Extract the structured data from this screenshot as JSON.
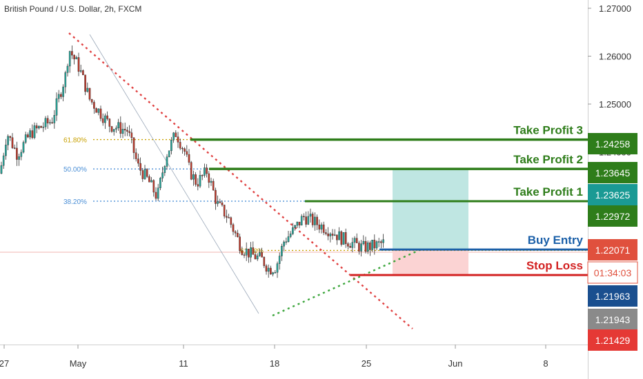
{
  "symbol_title": "British Pound / U.S. Dollar, 2h, FXCM",
  "colors": {
    "up": "#26a69a",
    "down": "#c0392b",
    "take_profit": "#2e7d1a",
    "buy_entry": "#1a5fa8",
    "stop_loss": "#d32222",
    "fib_blue": "#4a8fd6",
    "fib_gold": "#c8a000",
    "trend_red": "#e04040",
    "trend_green": "#3aa53a",
    "reward_zone": "#bfe6e2",
    "risk_zone": "#fbd3d3"
  },
  "chart_data": {
    "type": "candlestick",
    "title": "British Pound / U.S. Dollar, 2h, FXCM",
    "ylim": [
      1.2138,
      1.2728
    ],
    "x_ticks": [
      "27",
      "May",
      "11",
      "18",
      "25",
      "Jun",
      "8"
    ],
    "y_ticks": [
      "1.27000",
      "1.26000",
      "1.25000",
      "1.24000"
    ],
    "price_path": [
      [
        0,
        1.2355
      ],
      [
        10,
        1.244
      ],
      [
        25,
        1.2395
      ],
      [
        45,
        1.244
      ],
      [
        75,
        1.2465
      ],
      [
        95,
        1.256
      ],
      [
        100,
        1.2615
      ],
      [
        115,
        1.2575
      ],
      [
        130,
        1.251
      ],
      [
        160,
        1.2455
      ],
      [
        185,
        1.2445
      ],
      [
        200,
        1.237
      ],
      [
        215,
        1.234
      ],
      [
        228,
        1.2305
      ],
      [
        240,
        1.239
      ],
      [
        255,
        1.244
      ],
      [
        268,
        1.24
      ],
      [
        275,
        1.236
      ],
      [
        285,
        1.2335
      ],
      [
        300,
        1.236
      ],
      [
        315,
        1.229
      ],
      [
        330,
        1.2265
      ],
      [
        350,
        1.22
      ],
      [
        365,
        1.2185
      ],
      [
        380,
        1.2175
      ],
      [
        390,
        1.2155
      ],
      [
        400,
        1.216
      ],
      [
        412,
        1.2215
      ],
      [
        425,
        1.2235
      ],
      [
        440,
        1.2265
      ],
      [
        460,
        1.225
      ],
      [
        480,
        1.2235
      ],
      [
        495,
        1.222
      ],
      [
        510,
        1.221
      ],
      [
        525,
        1.22
      ],
      [
        545,
        1.2205
      ],
      [
        555,
        1.221
      ]
    ],
    "levels": [
      {
        "name": "Take Profit 3",
        "price": 1.24258
      },
      {
        "name": "Take Profit 2",
        "price": 1.23645
      },
      {
        "name": "Take Profit 1",
        "price": 1.22972
      },
      {
        "name": "Buy Entry",
        "price": 1.21963
      },
      {
        "name": "Stop Loss",
        "price": 1.21429
      }
    ],
    "fib_labels": [
      {
        "label": "61.80%",
        "price": 1.24258
      },
      {
        "label": "50.00%",
        "price": 1.23645
      },
      {
        "label": "38.20%",
        "price": 1.22972
      },
      {
        "label": "61.80%",
        "price": 1.21943
      }
    ],
    "price_labels": [
      {
        "text": "1.24258",
        "kind": "take_profit"
      },
      {
        "text": "1.23645",
        "kind": "take_profit"
      },
      {
        "text": "1.23625",
        "kind": "teal"
      },
      {
        "text": "1.22972",
        "kind": "take_profit"
      },
      {
        "text": "1.22071",
        "kind": "current"
      },
      {
        "text": "01:34:03",
        "kind": "countdown"
      },
      {
        "text": "1.21963",
        "kind": "buy_entry"
      },
      {
        "text": "1.21943",
        "kind": "grey"
      },
      {
        "text": "1.21429",
        "kind": "stop_loss"
      }
    ]
  }
}
